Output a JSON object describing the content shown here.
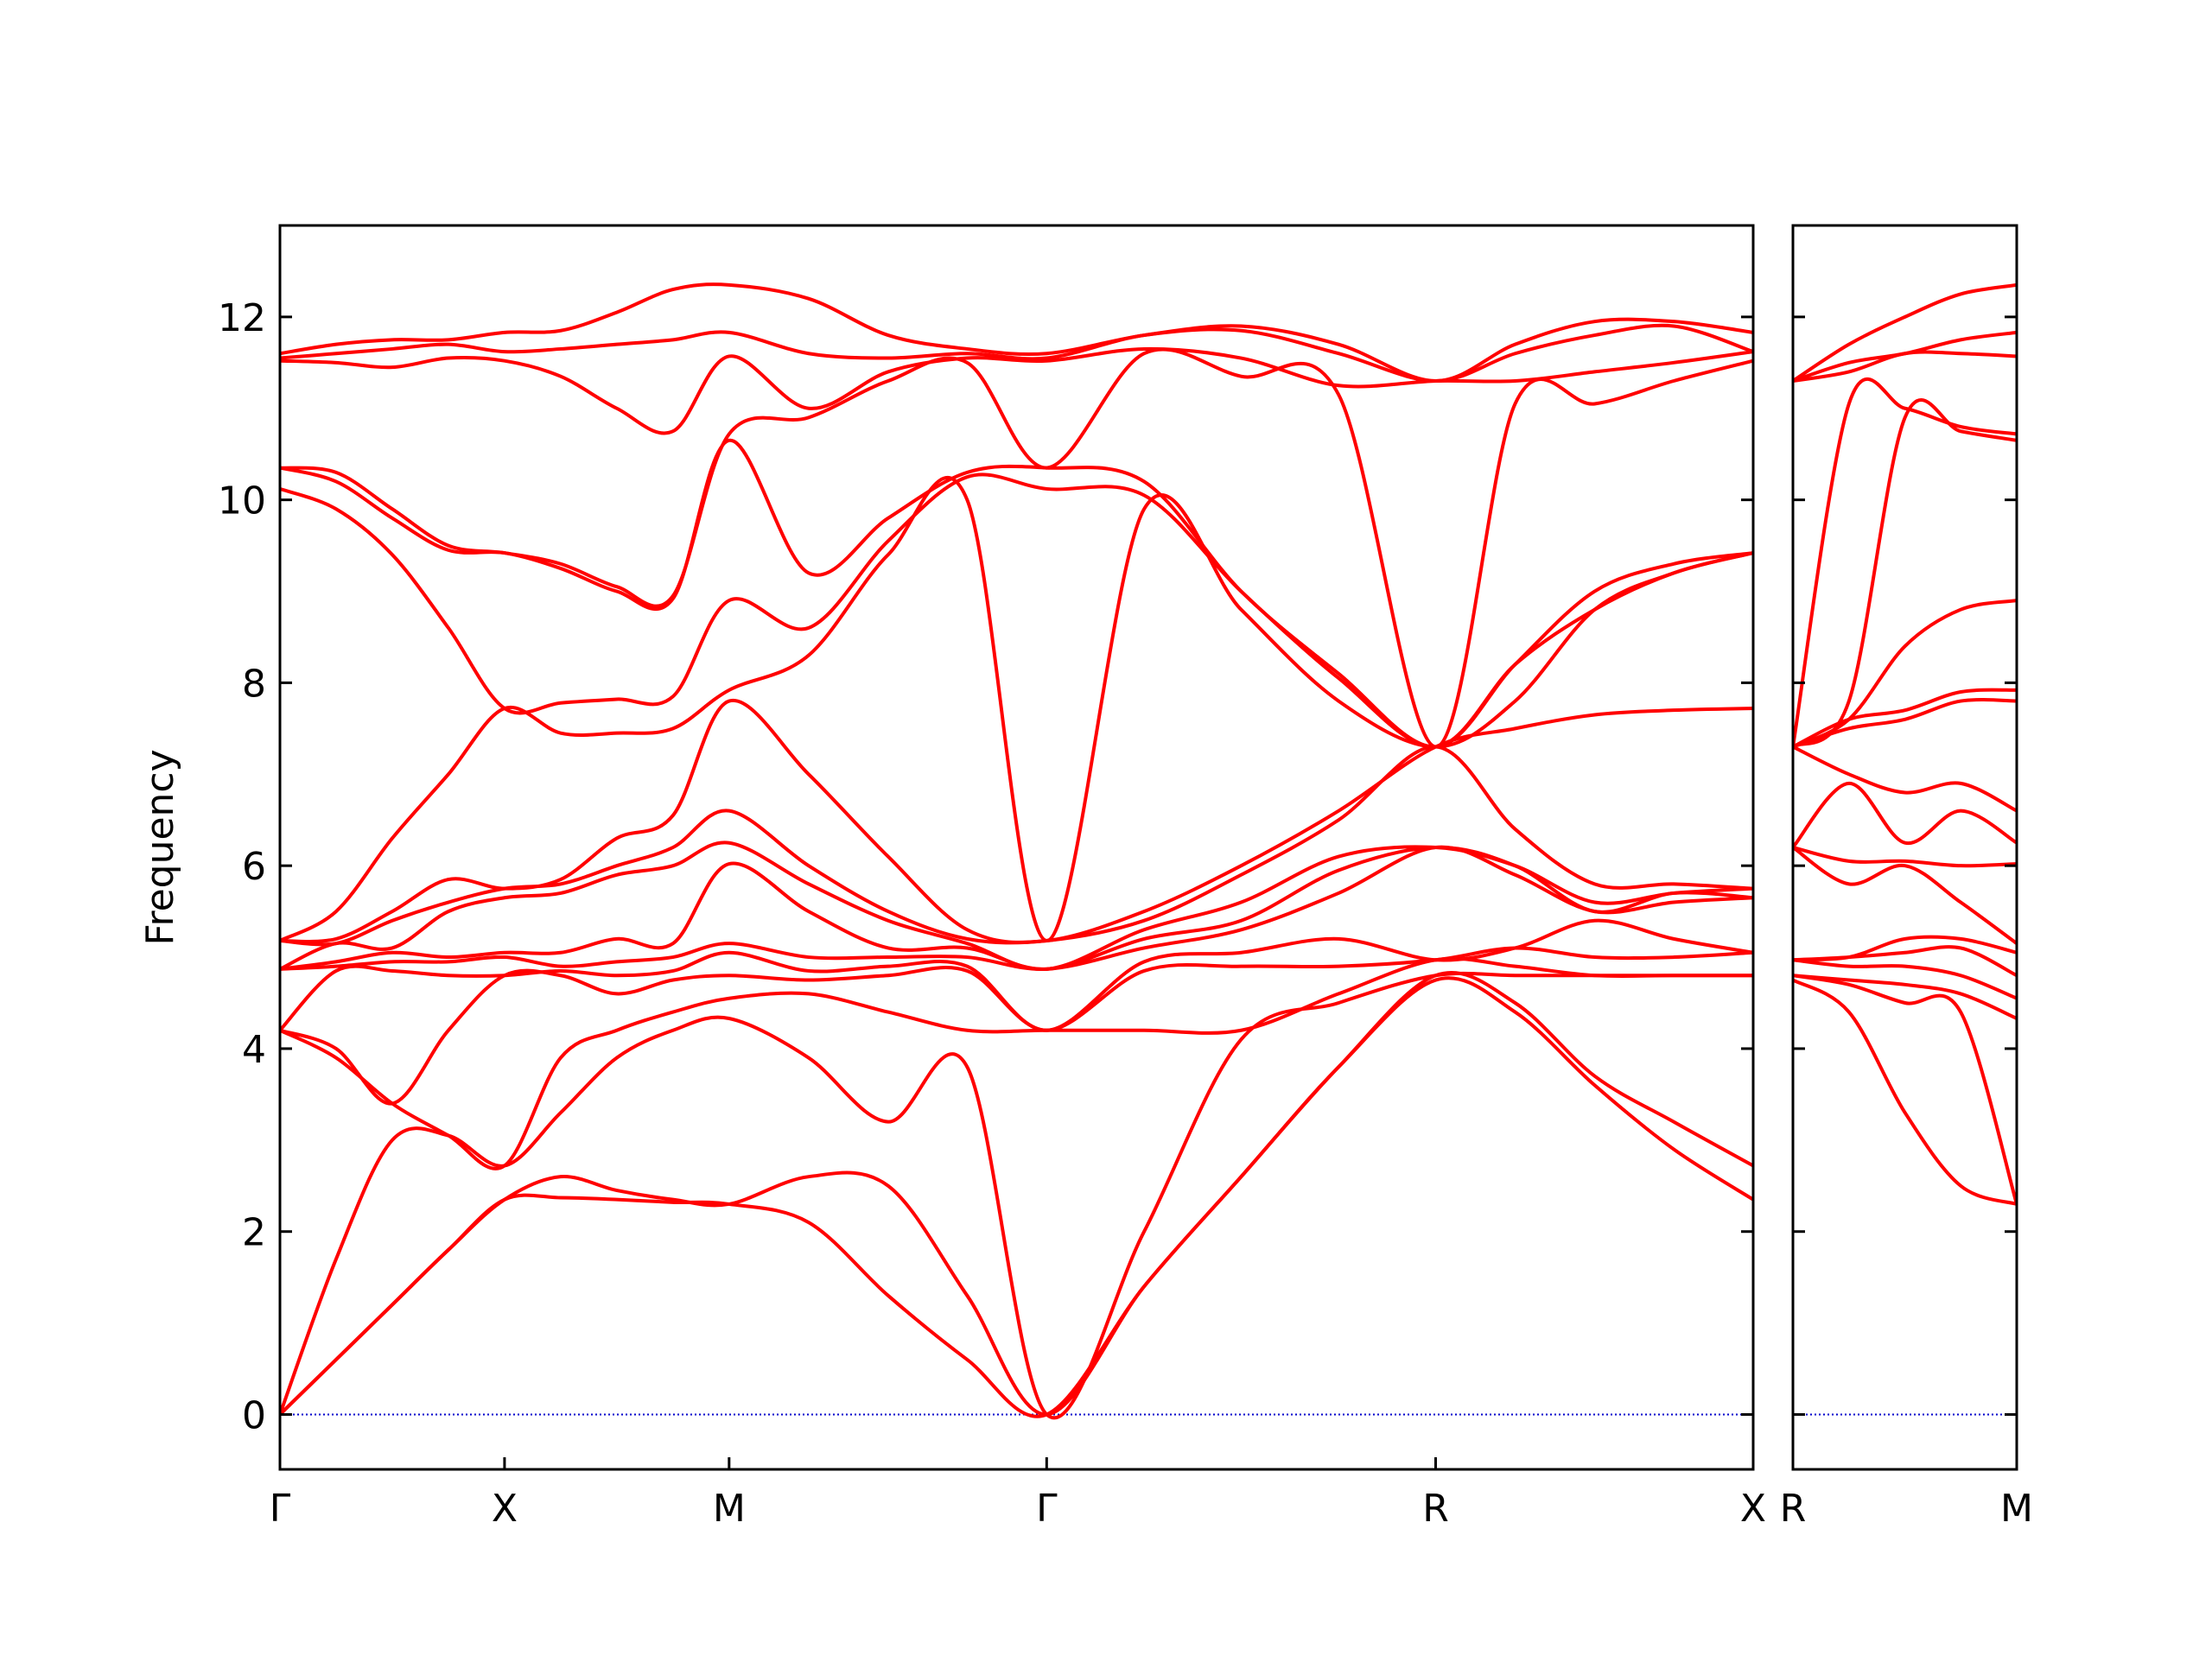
{
  "chart_data": [
    {
      "type": "line",
      "ylabel": "Frequency",
      "x": [
        0,
        0.125,
        0.25,
        0.375,
        0.5,
        0.625,
        0.75,
        0.875,
        1.0,
        1.177,
        1.354,
        1.53,
        1.707,
        1.924,
        2.14,
        2.357,
        2.573,
        2.75,
        2.927,
        3.103,
        3.28
      ],
      "xlim": [
        0,
        3.28
      ],
      "xticks": [
        {
          "value": 0,
          "label": "Γ"
        },
        {
          "value": 0.5,
          "label": "X"
        },
        {
          "value": 1.0,
          "label": "M"
        },
        {
          "value": 1.707,
          "label": "Γ"
        },
        {
          "value": 2.573,
          "label": "R"
        },
        {
          "value": 3.28,
          "label": "X"
        }
      ],
      "ylim": [
        -0.6,
        13
      ],
      "yticks": [
        0,
        2,
        4,
        6,
        8,
        10,
        12
      ],
      "ytick_labels": true,
      "zero_line": 0,
      "zero_line_color": "#0000cc",
      "series": [
        {
          "color": "#ff0000",
          "values": [
            0,
            0.6,
            1.2,
            1.8,
            2.35,
            2.37,
            2.35,
            2.32,
            2.3,
            2.1,
            1.3,
            0.6,
            0,
            1.4,
            2.6,
            3.8,
            4.75,
            4.4,
            3.6,
            2.9,
            2.35
          ]
        },
        {
          "color": "#ff0000",
          "values": [
            0,
            0.6,
            1.2,
            1.8,
            2.35,
            2.6,
            2.45,
            2.35,
            2.3,
            2.6,
            2.5,
            1.3,
            0,
            1.4,
            2.6,
            3.8,
            4.8,
            4.5,
            3.7,
            3.2,
            2.72
          ]
        },
        {
          "color": "#ff0000",
          "values": [
            0,
            1.7,
            3.0,
            3.05,
            2.72,
            3.3,
            3.9,
            4.2,
            4.33,
            3.9,
            3.2,
            3.8,
            0,
            2.0,
            4.1,
            4.5,
            4.8,
            4.8,
            4.8,
            4.8,
            4.8
          ]
        },
        {
          "color": "#ff0000",
          "values": [
            4.2,
            3.9,
            3.4,
            3.05,
            2.72,
            3.9,
            4.2,
            4.4,
            4.55,
            4.6,
            4.4,
            4.2,
            4.2,
            4.2,
            4.2,
            4.6,
            4.97,
            4.9,
            4.8,
            4.8,
            4.8
          ]
        },
        {
          "color": "#ff0000",
          "values": [
            4.2,
            4.0,
            3.4,
            4.2,
            4.8,
            4.8,
            4.6,
            4.75,
            4.8,
            4.75,
            4.8,
            4.85,
            4.2,
            4.85,
            4.9,
            4.9,
            4.97,
            5.1,
            5.0,
            5.0,
            5.05
          ]
        },
        {
          "color": "#ff0000",
          "values": [
            4.2,
            4.85,
            4.85,
            4.8,
            4.8,
            4.85,
            4.8,
            4.85,
            5.05,
            4.85,
            4.9,
            4.9,
            4.2,
            4.95,
            5.05,
            5.2,
            4.97,
            5.1,
            5.4,
            5.2,
            5.05
          ]
        },
        {
          "color": "#ff0000",
          "values": [
            4.87,
            4.9,
            4.95,
            4.95,
            5.0,
            4.9,
            4.95,
            5.0,
            5.15,
            5.0,
            5.0,
            5.0,
            4.87,
            5.1,
            5.3,
            5.7,
            6.2,
            5.9,
            5.5,
            5.6,
            5.65
          ]
        },
        {
          "color": "#ff0000",
          "values": [
            4.87,
            4.95,
            5.05,
            5.0,
            5.05,
            5.05,
            5.2,
            5.15,
            6.02,
            5.5,
            5.1,
            5.1,
            4.87,
            5.2,
            5.4,
            5.95,
            6.2,
            6.0,
            5.5,
            5.7,
            5.65
          ]
        },
        {
          "color": "#ff0000",
          "values": [
            4.87,
            5.15,
            5.1,
            5.5,
            5.65,
            5.7,
            5.9,
            6.0,
            6.25,
            5.8,
            5.4,
            5.15,
            4.87,
            5.3,
            5.6,
            6.1,
            6.2,
            6.0,
            5.6,
            5.7,
            5.75
          ]
        },
        {
          "color": "#ff0000",
          "values": [
            5.18,
            5.15,
            5.4,
            5.6,
            5.75,
            5.8,
            6.0,
            6.2,
            6.6,
            6.0,
            5.5,
            5.2,
            5.18,
            5.4,
            5.9,
            6.5,
            7.3,
            6.4,
            5.8,
            5.8,
            5.75
          ]
        },
        {
          "color": "#ff0000",
          "values": [
            5.18,
            5.2,
            5.5,
            5.85,
            5.75,
            5.85,
            6.3,
            6.55,
            7.8,
            7.0,
            6.1,
            5.3,
            5.18,
            5.5,
            6.0,
            6.6,
            7.3,
            7.5,
            7.65,
            7.7,
            7.72
          ]
        },
        {
          "color": "#ff0000",
          "values": [
            5.18,
            5.5,
            6.3,
            7.0,
            7.72,
            7.45,
            7.45,
            7.5,
            7.92,
            8.3,
            9.4,
            10.0,
            5.18,
            9.9,
            8.8,
            7.8,
            7.3,
            7.8,
            8.8,
            9.2,
            9.42
          ]
        },
        {
          "color": "#ff0000",
          "values": [
            10.12,
            9.9,
            9.4,
            8.6,
            7.72,
            7.78,
            7.82,
            7.85,
            8.9,
            8.6,
            9.55,
            10.25,
            10.12,
            10.05,
            9.0,
            8.05,
            7.3,
            8.2,
            8.8,
            9.2,
            9.42
          ]
        },
        {
          "color": "#ff0000",
          "values": [
            10.35,
            10.2,
            9.8,
            9.45,
            9.42,
            9.25,
            9.0,
            8.92,
            10.65,
            9.2,
            9.8,
            10.3,
            10.35,
            10.2,
            9.0,
            8.1,
            7.3,
            8.2,
            9.0,
            9.3,
            9.42
          ]
        },
        {
          "color": "#ff0000",
          "values": [
            10.35,
            10.3,
            9.9,
            9.5,
            9.42,
            9.3,
            9.05,
            8.95,
            10.72,
            10.9,
            11.3,
            11.5,
            10.35,
            11.6,
            11.35,
            11.15,
            7.3,
            11.05,
            11.05,
            11.3,
            11.52
          ]
        },
        {
          "color": "#ff0000",
          "values": [
            11.52,
            11.5,
            11.45,
            11.55,
            11.52,
            11.35,
            11.0,
            10.75,
            11.57,
            11.0,
            11.4,
            11.55,
            11.52,
            11.65,
            11.55,
            11.25,
            11.3,
            11.3,
            11.4,
            11.5,
            11.62
          ]
        },
        {
          "color": "#ff0000",
          "values": [
            11.55,
            11.6,
            11.65,
            11.7,
            11.62,
            11.65,
            11.7,
            11.75,
            11.83,
            11.6,
            11.55,
            11.6,
            11.55,
            11.8,
            11.85,
            11.6,
            11.3,
            11.6,
            11.8,
            11.9,
            11.62
          ]
        },
        {
          "color": "#ff0000",
          "values": [
            11.6,
            11.7,
            11.75,
            11.75,
            11.83,
            11.85,
            12.05,
            12.3,
            12.35,
            12.2,
            11.8,
            11.65,
            11.6,
            11.8,
            11.9,
            11.7,
            11.3,
            11.7,
            11.95,
            11.95,
            11.83
          ]
        }
      ]
    },
    {
      "type": "line",
      "x": [
        0,
        0.177,
        0.354,
        0.53,
        0.7071
      ],
      "xlim": [
        0,
        0.7071
      ],
      "xticks": [
        {
          "value": 0,
          "label": "R"
        },
        {
          "value": 0.7071,
          "label": "M"
        }
      ],
      "ylim": [
        -0.6,
        13
      ],
      "yticks": [
        0,
        2,
        4,
        6,
        8,
        10,
        12
      ],
      "ytick_labels": false,
      "zero_line": 0,
      "zero_line_color": "#0000cc",
      "series": [
        {
          "color": "#ff0000",
          "values": [
            4.75,
            4.4,
            3.3,
            2.5,
            2.3
          ]
        },
        {
          "color": "#ff0000",
          "values": [
            4.8,
            4.7,
            4.5,
            4.4,
            2.3
          ]
        },
        {
          "color": "#ff0000",
          "values": [
            4.8,
            4.75,
            4.7,
            4.6,
            4.33
          ]
        },
        {
          "color": "#ff0000",
          "values": [
            4.97,
            4.9,
            4.9,
            4.8,
            4.55
          ]
        },
        {
          "color": "#ff0000",
          "values": [
            4.97,
            5.0,
            5.05,
            5.1,
            4.8
          ]
        },
        {
          "color": "#ff0000",
          "values": [
            4.97,
            5.0,
            5.2,
            5.2,
            5.05
          ]
        },
        {
          "color": "#ff0000",
          "values": [
            6.2,
            5.8,
            6.0,
            5.6,
            5.15
          ]
        },
        {
          "color": "#ff0000",
          "values": [
            6.2,
            6.05,
            6.05,
            6.0,
            6.02
          ]
        },
        {
          "color": "#ff0000",
          "values": [
            6.2,
            6.9,
            6.25,
            6.6,
            6.25
          ]
        },
        {
          "color": "#ff0000",
          "values": [
            7.3,
            7.0,
            6.8,
            6.9,
            6.6
          ]
        },
        {
          "color": "#ff0000",
          "values": [
            7.3,
            7.5,
            7.6,
            7.8,
            7.8
          ]
        },
        {
          "color": "#ff0000",
          "values": [
            7.3,
            7.6,
            7.7,
            7.9,
            7.92
          ]
        },
        {
          "color": "#ff0000",
          "values": [
            7.3,
            7.6,
            8.4,
            8.8,
            8.9
          ]
        },
        {
          "color": "#ff0000",
          "values": [
            7.3,
            7.8,
            10.9,
            10.75,
            10.65
          ]
        },
        {
          "color": "#ff0000",
          "values": [
            7.3,
            11.05,
            11.0,
            10.8,
            10.72
          ]
        },
        {
          "color": "#ff0000",
          "values": [
            11.3,
            11.4,
            11.6,
            11.6,
            11.57
          ]
        },
        {
          "color": "#ff0000",
          "values": [
            11.3,
            11.5,
            11.6,
            11.75,
            11.83
          ]
        },
        {
          "color": "#ff0000",
          "values": [
            11.3,
            11.7,
            12.0,
            12.25,
            12.35
          ]
        }
      ]
    }
  ]
}
